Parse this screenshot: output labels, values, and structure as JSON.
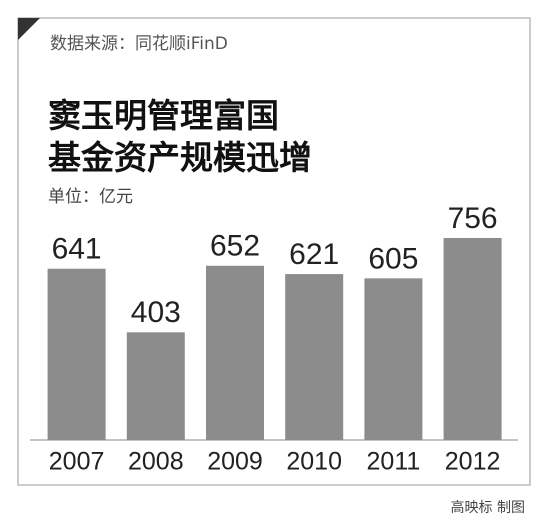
{
  "chart_data": {
    "type": "bar",
    "source": "数据来源：同花顺iFinD",
    "title": [
      "窦玉明管理富国",
      "基金资产规模迅增"
    ],
    "unit": "单位：亿元",
    "categories": [
      "2007",
      "2008",
      "2009",
      "2010",
      "2011",
      "2012"
    ],
    "values": [
      641,
      403,
      652,
      621,
      605,
      756
    ],
    "color": "#8c8c8c",
    "credit": "高映标 制图"
  }
}
